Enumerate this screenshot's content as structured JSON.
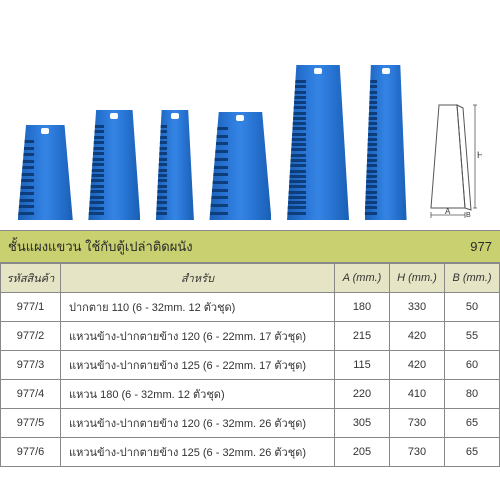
{
  "title": "ชั้นแผงแขวน ใช้กับตู้เปล่าติดผนัง",
  "title_code": "977",
  "racks": [
    {
      "width": 55,
      "height": 95,
      "notches": 12
    },
    {
      "width": 52,
      "height": 110,
      "notches": 17
    },
    {
      "width": 38,
      "height": 110,
      "notches": 17
    },
    {
      "width": 62,
      "height": 108,
      "notches": 12
    },
    {
      "width": 62,
      "height": 155,
      "notches": 26
    },
    {
      "width": 42,
      "height": 155,
      "notches": 26
    }
  ],
  "diagram_labels": {
    "A": "A",
    "B": "B",
    "H": "H"
  },
  "table": {
    "headers": [
      "รหัสสินค้า",
      "สำหรับ",
      "A (mm.)",
      "H (mm.)",
      "B (mm.)"
    ],
    "rows": [
      [
        "977/1",
        "ปากตาย 110 (6 - 32mm. 12 ตัวชุด)",
        "180",
        "330",
        "50"
      ],
      [
        "977/2",
        "แหวนข้าง-ปากตายข้าง 120 (6 - 22mm. 17 ตัวชุด)",
        "215",
        "420",
        "55"
      ],
      [
        "977/3",
        "แหวนข้าง-ปากตายข้าง 125 (6 - 22mm. 17 ตัวชุด)",
        "115",
        "420",
        "60"
      ],
      [
        "977/4",
        "แหวน 180 (6 - 32mm. 12 ตัวชุด)",
        "220",
        "410",
        "80"
      ],
      [
        "977/5",
        "แหวนข้าง-ปากตายข้าง 120 (6 - 32mm. 26 ตัวชุด)",
        "305",
        "730",
        "65"
      ],
      [
        "977/6",
        "แหวนข้าง-ปากตายข้าง 125 (6 - 32mm. 26 ตัวชุด)",
        "205",
        "730",
        "65"
      ]
    ]
  }
}
